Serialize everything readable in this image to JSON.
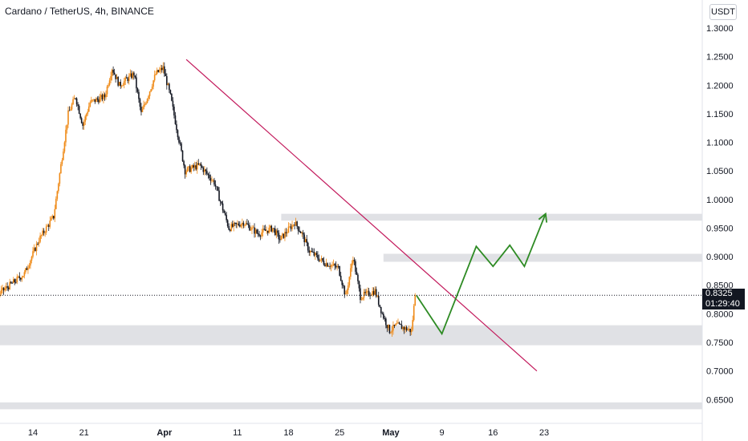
{
  "header": {
    "symbol_title": "Cardano / TetherUS, 4h, BINANCE",
    "currency_button": "USDT"
  },
  "price_scale": {
    "ticks": [
      "1.3000",
      "1.2500",
      "1.2000",
      "1.1500",
      "1.1000",
      "1.0500",
      "1.0000",
      "0.9500",
      "0.9000",
      "0.8500",
      "0.8000",
      "0.7500",
      "0.7000",
      "0.6500"
    ],
    "last_price": "0.8325",
    "countdown": "01:29:40"
  },
  "chart_data": {
    "type": "candlestick",
    "title": "Cardano / TetherUS, 4h, BINANCE",
    "y_range": [
      0.62,
      1.32
    ],
    "x_tick_labels": [
      "14",
      "21",
      "Apr",
      "11",
      "18",
      "25",
      "May",
      "9",
      "16",
      "23"
    ],
    "x_tick_values": [
      14,
      21,
      32,
      42,
      49,
      56,
      63,
      70,
      77,
      84
    ],
    "x_axis_note": "days from Mar 1",
    "price_path_anchors": [
      {
        "x": 0,
        "y": 0.85
      },
      {
        "x": 1,
        "y": 0.8
      },
      {
        "x": 5,
        "y": 0.79
      },
      {
        "x": 8,
        "y": 0.8
      },
      {
        "x": 9,
        "y": 0.83
      },
      {
        "x": 11,
        "y": 0.85
      },
      {
        "x": 13,
        "y": 0.87
      },
      {
        "x": 15,
        "y": 0.93
      },
      {
        "x": 17,
        "y": 0.97
      },
      {
        "x": 18,
        "y": 1.06
      },
      {
        "x": 19,
        "y": 1.15
      },
      {
        "x": 20,
        "y": 1.18
      },
      {
        "x": 21,
        "y": 1.13
      },
      {
        "x": 22,
        "y": 1.17
      },
      {
        "x": 24,
        "y": 1.18
      },
      {
        "x": 25,
        "y": 1.23
      },
      {
        "x": 26,
        "y": 1.2
      },
      {
        "x": 28,
        "y": 1.22
      },
      {
        "x": 29,
        "y": 1.15
      },
      {
        "x": 31,
        "y": 1.22
      },
      {
        "x": 32,
        "y": 1.23
      },
      {
        "x": 33,
        "y": 1.18
      },
      {
        "x": 35,
        "y": 1.05
      },
      {
        "x": 37,
        "y": 1.06
      },
      {
        "x": 39,
        "y": 1.03
      },
      {
        "x": 41,
        "y": 0.95
      },
      {
        "x": 43,
        "y": 0.96
      },
      {
        "x": 45,
        "y": 0.94
      },
      {
        "x": 47,
        "y": 0.95
      },
      {
        "x": 48,
        "y": 0.93
      },
      {
        "x": 50,
        "y": 0.96
      },
      {
        "x": 51,
        "y": 0.94
      },
      {
        "x": 52,
        "y": 0.91
      },
      {
        "x": 54,
        "y": 0.89
      },
      {
        "x": 56,
        "y": 0.88
      },
      {
        "x": 57,
        "y": 0.83
      },
      {
        "x": 58,
        "y": 0.9
      },
      {
        "x": 59,
        "y": 0.83
      },
      {
        "x": 61,
        "y": 0.84
      },
      {
        "x": 62,
        "y": 0.8
      },
      {
        "x": 63,
        "y": 0.77
      },
      {
        "x": 64,
        "y": 0.78
      },
      {
        "x": 66,
        "y": 0.77
      },
      {
        "x": 66.5,
        "y": 0.8325
      }
    ],
    "colors": {
      "up": "#ef8a17",
      "down": "#131722",
      "trendline": "#c2185b",
      "projection": "#2e8b24",
      "zone": "#e0e1e5"
    },
    "trendline": [
      {
        "x": 35,
        "y": 1.245
      },
      {
        "x": 83,
        "y": 0.7
      }
    ],
    "support_resistance_zones": [
      {
        "x_start": 48,
        "y_low": 0.963,
        "y_high": 0.975
      },
      {
        "x_start": 62,
        "y_low": 0.891,
        "y_high": 0.905
      },
      {
        "x_start": 0,
        "y_low": 0.745,
        "y_high": 0.78
      },
      {
        "x_start": 0,
        "y_low": 0.633,
        "y_high": 0.645
      }
    ],
    "projection_path": [
      {
        "x": 66.5,
        "y": 0.8325
      },
      {
        "x": 70,
        "y": 0.765
      },
      {
        "x": 74.7,
        "y": 0.918
      },
      {
        "x": 77,
        "y": 0.883
      },
      {
        "x": 79.3,
        "y": 0.92
      },
      {
        "x": 81.3,
        "y": 0.883
      },
      {
        "x": 84.2,
        "y": 0.975
      }
    ],
    "last_price": 0.8325
  }
}
